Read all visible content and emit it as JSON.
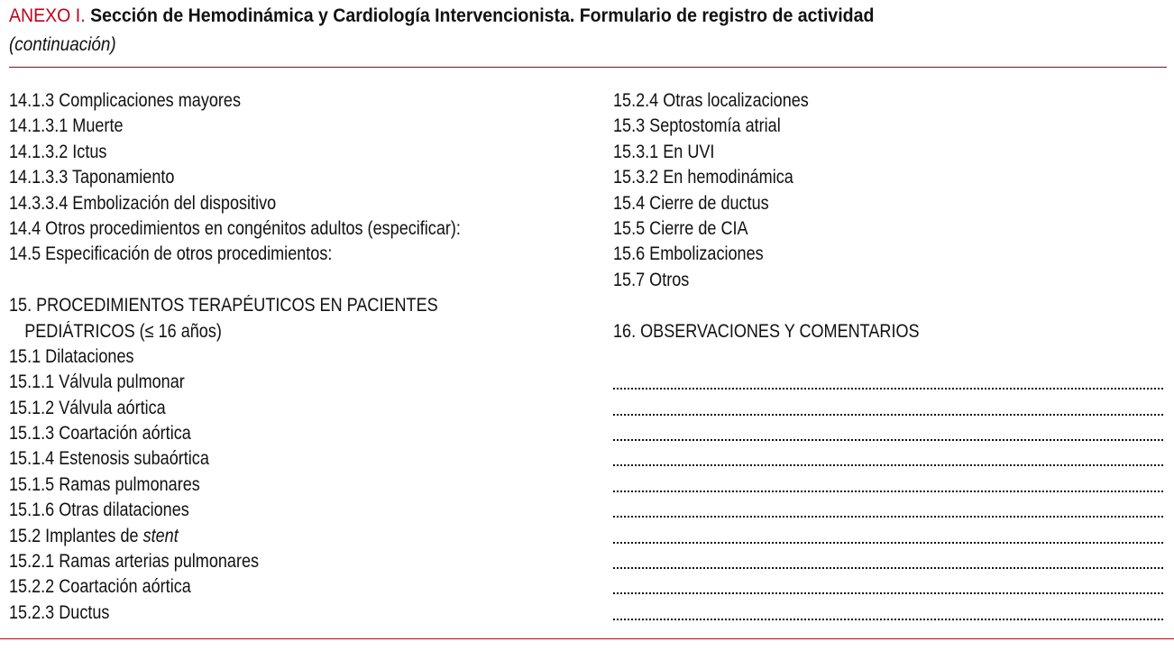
{
  "header": {
    "annex": "ANEXO I.",
    "title": "Sección de Hemodinámica y Cardiología Intervencionista. Formulario de registro de actividad",
    "subtitle": "(continuación)"
  },
  "colors": {
    "accent": "#c0001a",
    "text": "#111111"
  },
  "left_column": [
    {
      "text": "14.1.3 Complicaciones mayores"
    },
    {
      "text": "14.1.3.1 Muerte"
    },
    {
      "text": "14.1.3.2 Ictus"
    },
    {
      "text": "14.1.3.3 Taponamiento"
    },
    {
      "text": "14.3.3.4 Embolización del dispositivo"
    },
    {
      "text": "14.4 Otros procedimientos en congénitos adultos (especificar):"
    },
    {
      "text": "14.5 Especificación de otros procedimientos:"
    },
    {
      "text": ""
    },
    {
      "text": "15. PROCEDIMIENTOS TERAPÉUTICOS EN PACIENTES"
    },
    {
      "text": "PEDIÁTRICOS (≤ 16 años)",
      "indent": true
    },
    {
      "text": "15.1 Dilataciones"
    },
    {
      "text": "15.1.1 Válvula pulmonar"
    },
    {
      "text": "15.1.2 Válvula aórtica"
    },
    {
      "text": "15.1.3 Coartación aórtica"
    },
    {
      "text": "15.1.4 Estenosis subaórtica"
    },
    {
      "text": "15.1.5 Ramas pulmonares"
    },
    {
      "text": "15.1.6 Otras dilataciones"
    },
    {
      "text": "15.2 Implantes de ",
      "em": "stent"
    },
    {
      "text": "15.2.1 Ramas arterias pulmonares"
    },
    {
      "text": "15.2.2 Coartación aórtica"
    },
    {
      "text": "15.2.3 Ductus"
    }
  ],
  "right_column": [
    {
      "text": "15.2.4 Otras localizaciones"
    },
    {
      "text": "15.3 Septostomía atrial"
    },
    {
      "text": "15.3.1 En UVI"
    },
    {
      "text": "15.3.2 En hemodinámica"
    },
    {
      "text": "15.4 Cierre de ductus"
    },
    {
      "text": "15.5 Cierre de CIA"
    },
    {
      "text": "15.6 Embolizaciones"
    },
    {
      "text": "15.7 Otros"
    },
    {
      "text": ""
    },
    {
      "text": "16. OBSERVACIONES Y COMENTARIOS"
    },
    {
      "text": ""
    }
  ],
  "comment_lines": 10
}
